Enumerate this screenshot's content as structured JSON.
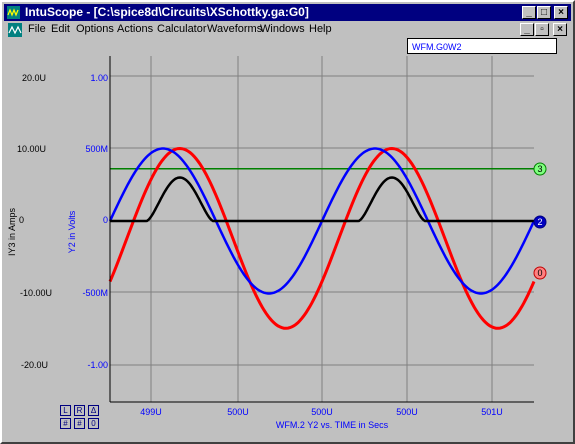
{
  "window": {
    "title": "IntuScope - [C:\\spice8d\\Circuits\\XSchottky.ga:G0]",
    "min_glyph": "_",
    "max_glyph": "□",
    "close_glyph": "×",
    "restore_glyph": "▫"
  },
  "menu": [
    "File",
    "Edit",
    "Options",
    "Actions",
    "Calculator",
    "Waveforms",
    "Windows",
    "Help"
  ],
  "waveform_tag": "WFM.G0W2",
  "left_axis": {
    "label": "IY3 in Amps",
    "ticks": [
      "20.0U",
      "10.00U",
      "0",
      "-10.00U",
      "-20.0U"
    ]
  },
  "right_axis": {
    "label": "Y2 in Volts",
    "ticks": [
      "1.00",
      "500M",
      "0",
      "-500M",
      "-1.00"
    ]
  },
  "x_axis": {
    "ticks": [
      "499U",
      "500U",
      "500U",
      "500U",
      "501U"
    ],
    "caption": "WFM.2   Y2 vs. TIME in Secs"
  },
  "markers": [
    "3",
    "2",
    "0"
  ],
  "corner_buttons": [
    "L",
    "R",
    "Δ",
    "#",
    "#",
    "0"
  ],
  "colors": {
    "blue": "#0000ff",
    "red": "#ff0000",
    "green": "#008000",
    "black": "#000000",
    "title": "#000080"
  },
  "chart_data": {
    "type": "line",
    "x_ticks": [
      "499U",
      "500U",
      "500U",
      "500U",
      "501U"
    ],
    "left_ticks": [
      "20.0U",
      "10.00U",
      "0",
      "-10.00U",
      "-20.0U"
    ],
    "right_ticks": [
      "1.00",
      "500M",
      "0",
      "-500M",
      "-1.00"
    ],
    "ylabel_left": "IY3 in Amps",
    "ylabel_right": "Y2 in Volts",
    "ylim_right": [
      -1.0,
      1.0
    ],
    "ylim_left": [
      -20,
      20
    ],
    "series": [
      {
        "color": "#0000ff",
        "amplitude": 0.5,
        "offset": 0.0,
        "periods": 2
      },
      {
        "color": "#ff0000",
        "amplitude": 0.62,
        "offset": -0.12,
        "periods": 2
      },
      {
        "color": "#008000",
        "constant": 0.36
      },
      {
        "color": "#000000",
        "peak": 0.3
      }
    ]
  }
}
